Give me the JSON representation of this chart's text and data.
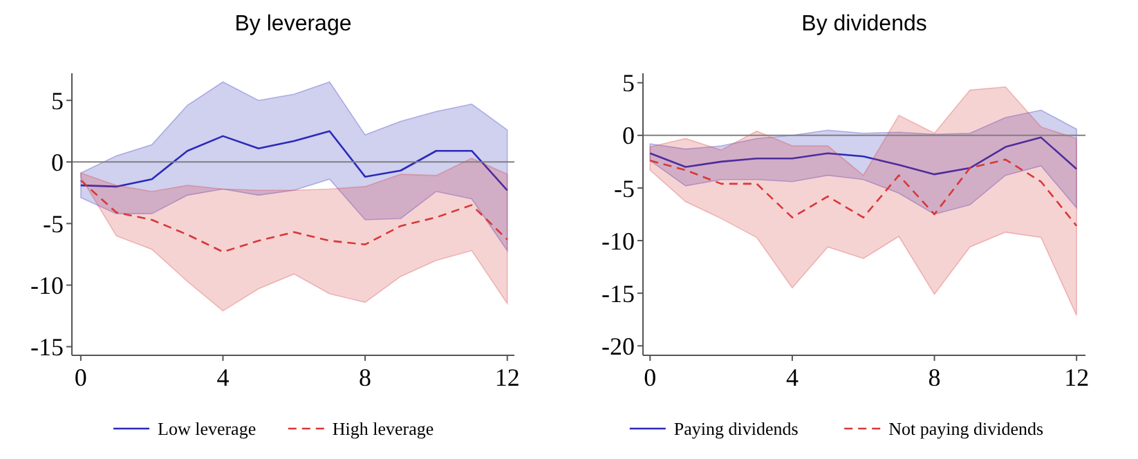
{
  "chart_data": [
    {
      "type": "line",
      "title": "By leverage",
      "x": [
        0,
        1,
        2,
        3,
        4,
        5,
        6,
        7,
        8,
        9,
        10,
        11,
        12
      ],
      "xlim": [
        -0.25,
        12.2
      ],
      "xticks": [
        0,
        4,
        8,
        12
      ],
      "ylim": [
        -15.7,
        7.2
      ],
      "yticks": [
        5,
        0,
        -5,
        -10,
        -15
      ],
      "grid": false,
      "legend": "bottom",
      "ref_lines": [
        {
          "axis": "y",
          "value": 0,
          "color": "#808080"
        }
      ],
      "series": [
        {
          "name": "Low leverage",
          "color": "#2a2ab8",
          "line_style": "solid",
          "values": [
            -1.9,
            -2.0,
            -1.4,
            0.9,
            2.1,
            1.1,
            1.7,
            2.5,
            -1.2,
            -0.7,
            0.9,
            0.9,
            -2.3
          ],
          "lower": [
            -2.9,
            -4.2,
            -4.2,
            -2.7,
            -2.2,
            -2.7,
            -2.3,
            -1.4,
            -4.7,
            -4.6,
            -2.4,
            -3.0,
            -7.2
          ],
          "upper": [
            -0.9,
            0.5,
            1.4,
            4.6,
            6.5,
            5.0,
            5.5,
            6.5,
            2.2,
            3.3,
            4.1,
            4.7,
            2.6
          ]
        },
        {
          "name": "High leverage",
          "color": "#d83838",
          "line_style": "dashed",
          "values": [
            -1.5,
            -4.1,
            -4.7,
            -5.9,
            -7.3,
            -6.4,
            -5.7,
            -6.4,
            -6.7,
            -5.2,
            -4.5,
            -3.5,
            -6.3
          ],
          "lower": [
            -1.2,
            -6.0,
            -7.1,
            -9.7,
            -12.1,
            -10.3,
            -9.1,
            -10.7,
            -11.4,
            -9.3,
            -8.0,
            -7.2,
            -11.5
          ],
          "upper": [
            -0.9,
            -1.9,
            -2.4,
            -1.9,
            -2.2,
            -2.3,
            -2.3,
            -2.2,
            -2.0,
            -1.0,
            -1.1,
            0.3,
            -1.0
          ]
        }
      ]
    },
    {
      "type": "line",
      "title": "By dividends",
      "x": [
        0,
        1,
        2,
        3,
        4,
        5,
        6,
        7,
        8,
        9,
        10,
        11,
        12
      ],
      "xlim": [
        -0.2,
        12.25
      ],
      "xticks": [
        0,
        4,
        8,
        12
      ],
      "ylim": [
        -20.9,
        5.9
      ],
      "yticks": [
        5,
        0,
        -5,
        -10,
        -15,
        -20
      ],
      "grid": false,
      "legend": "bottom",
      "ref_lines": [
        {
          "axis": "y",
          "value": 0,
          "color": "#808080"
        }
      ],
      "series": [
        {
          "name": "Paying dividends",
          "color": "#2a2ab8",
          "line_style": "solid",
          "values": [
            -1.7,
            -3.0,
            -2.5,
            -2.2,
            -2.2,
            -1.7,
            -2.0,
            -2.8,
            -3.7,
            -3.1,
            -1.1,
            -0.2,
            -3.2
          ],
          "lower": [
            -2.4,
            -4.8,
            -4.2,
            -4.2,
            -4.4,
            -3.8,
            -4.2,
            -5.5,
            -7.5,
            -6.6,
            -3.8,
            -2.9,
            -6.9
          ],
          "upper": [
            -0.8,
            -1.3,
            -1.0,
            -0.3,
            0,
            0.5,
            0.2,
            0.3,
            0.1,
            0.2,
            1.7,
            2.4,
            0.6
          ]
        },
        {
          "name": "Not paying dividends",
          "color": "#d83838",
          "line_style": "dashed",
          "values": [
            -2.4,
            -3.3,
            -4.6,
            -4.6,
            -7.8,
            -5.8,
            -7.8,
            -3.8,
            -7.5,
            -3.1,
            -2.3,
            -4.4,
            -8.6
          ],
          "lower": [
            -3.3,
            -6.3,
            -7.9,
            -9.7,
            -14.5,
            -10.6,
            -11.7,
            -9.6,
            -15.1,
            -10.6,
            -9.2,
            -9.7,
            -17.1
          ],
          "upper": [
            -1.1,
            -0.3,
            -1.4,
            0.4,
            -1.0,
            -1.0,
            -3.8,
            1.9,
            0.2,
            4.3,
            4.6,
            0.8,
            -0.3
          ]
        }
      ]
    }
  ]
}
